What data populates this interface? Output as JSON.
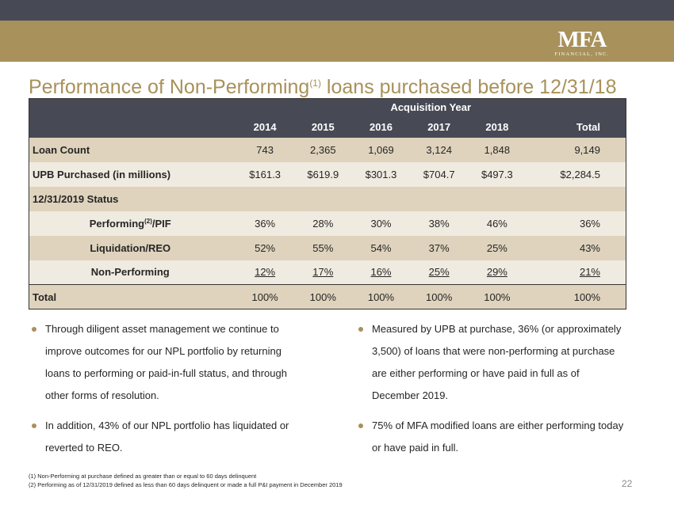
{
  "logo": {
    "mark": "MFA",
    "sub": "FINANCIAL, INC."
  },
  "title": {
    "main": "Performance of Non-Performing",
    "sup": "(1)",
    "rest": " loans purchased before 12/31/18"
  },
  "table": {
    "group_header": "Acquisition Year",
    "columns": [
      "2014",
      "2015",
      "2016",
      "2017",
      "2018",
      "Total"
    ],
    "rows": {
      "loan_count": {
        "label": "Loan Count",
        "values": [
          "743",
          "2,365",
          "1,069",
          "3,124",
          "1,848",
          "9,149"
        ]
      },
      "upb": {
        "label": "UPB Purchased (in millions)",
        "values": [
          "$161.3",
          "$619.9",
          "$301.3",
          "$704.7",
          "$497.3",
          "$2,284.5"
        ]
      },
      "status": {
        "label": "12/31/2019 Status"
      },
      "performing": {
        "label": "Performing",
        "label_sup": "(2)",
        "label_suffix": "/PIF",
        "values": [
          "36%",
          "28%",
          "30%",
          "38%",
          "46%",
          "36%"
        ]
      },
      "liquidation": {
        "label": "Liquidation/REO",
        "values": [
          "52%",
          "55%",
          "54%",
          "37%",
          "25%",
          "43%"
        ]
      },
      "non_performing": {
        "label": "Non-Performing",
        "values": [
          "12%",
          "17%",
          "16%",
          "25%",
          "29%",
          "21%"
        ]
      },
      "total": {
        "label": "Total",
        "values": [
          "100%",
          "100%",
          "100%",
          "100%",
          "100%",
          "100%"
        ]
      }
    }
  },
  "bullets_left": [
    "Through diligent asset management we continue to improve outcomes for our NPL portfolio by returning loans to performing or paid-in-full status, and through other forms of resolution.",
    "In addition, 43% of our NPL portfolio has liquidated or reverted to REO."
  ],
  "bullets_right": [
    "Measured by UPB at purchase, 36% (or approximately 3,500) of loans that were non-performing at purchase are either performing or have paid in full as of December 2019.",
    "75% of MFA modified loans are either performing today or have paid in full."
  ],
  "footnotes": [
    "(1)  Non-Performing at purchase defined as greater than or equal to 60 days delinquent",
    "(2)  Performing as of 12/31/2019 defined as less than 60 days delinquent or made a full P&I payment in December 2019"
  ],
  "page_number": "22",
  "colors": {
    "gold": "#a8915a",
    "dark_band": "#474a55",
    "row_tan": "#dfd3bd",
    "row_light": "#f0ebe0"
  }
}
